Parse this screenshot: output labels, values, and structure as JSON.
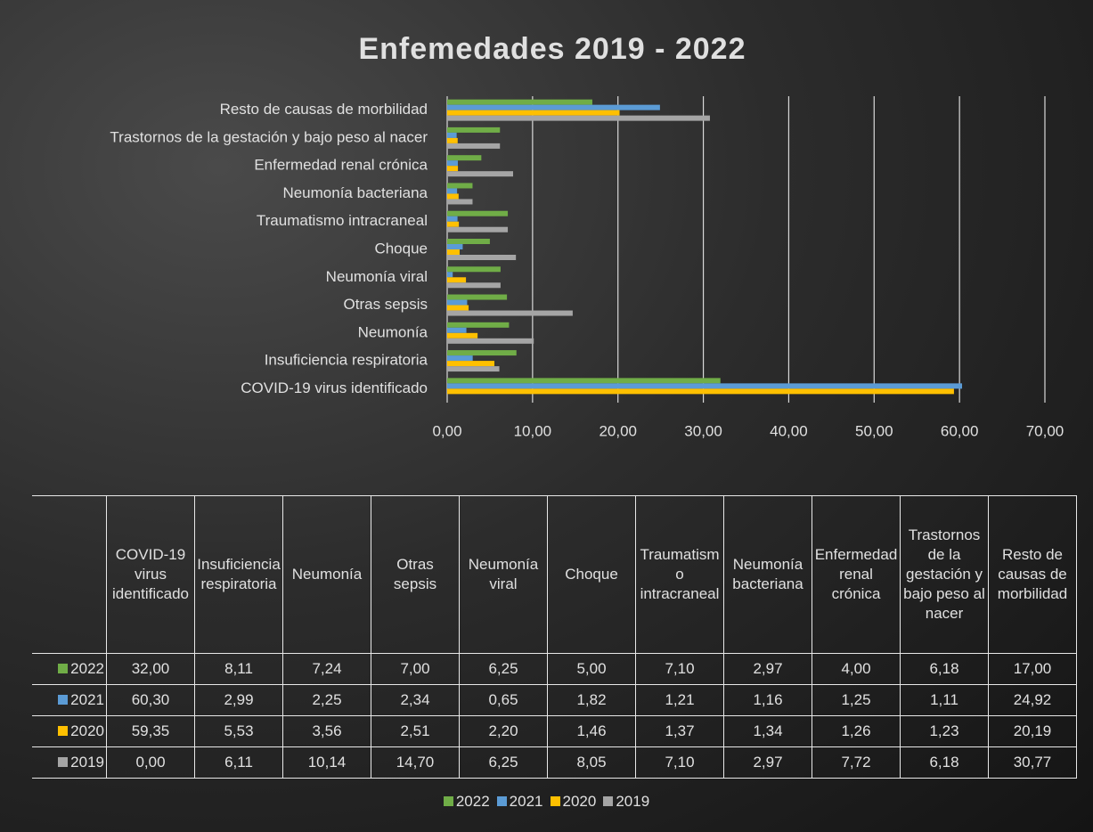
{
  "chart_data": {
    "type": "hbar",
    "title": "Enfemedades 2019 - 2022",
    "categories": [
      "COVID-19 virus identificado",
      "Insuficiencia respiratoria",
      "Neumonía",
      "Otras sepsis",
      "Neumonía viral",
      "Choque",
      "Traumatismo intracraneal",
      "Neumonía bacteriana",
      "Enfermedad renal crónica",
      "Trastornos de la gestación y bajo peso al nacer",
      "Resto de causas de morbilidad"
    ],
    "series": [
      {
        "name": "2022",
        "color": "#70ad47",
        "values": [
          32.0,
          8.11,
          7.24,
          7.0,
          6.25,
          5.0,
          7.1,
          2.97,
          4.0,
          6.18,
          17.0
        ],
        "value_labels": [
          "32,00",
          "8,11",
          "7,24",
          "7,00",
          "6,25",
          "5,00",
          "7,10",
          "2,97",
          "4,00",
          "6,18",
          "17,00"
        ]
      },
      {
        "name": "2021",
        "color": "#5b9bd5",
        "values": [
          60.3,
          2.99,
          2.25,
          2.34,
          0.65,
          1.82,
          1.21,
          1.16,
          1.25,
          1.11,
          24.92
        ],
        "value_labels": [
          "60,30",
          "2,99",
          "2,25",
          "2,34",
          "0,65",
          "1,82",
          "1,21",
          "1,16",
          "1,25",
          "1,11",
          "24,92"
        ]
      },
      {
        "name": "2020",
        "color": "#ffc000",
        "values": [
          59.35,
          5.53,
          3.56,
          2.51,
          2.2,
          1.46,
          1.37,
          1.34,
          1.26,
          1.23,
          20.19
        ],
        "value_labels": [
          "59,35",
          "5,53",
          "3,56",
          "2,51",
          "2,20",
          "1,46",
          "1,37",
          "1,34",
          "1,26",
          "1,23",
          "20,19"
        ]
      },
      {
        "name": "2019",
        "color": "#a5a5a5",
        "values": [
          0.0,
          6.11,
          10.14,
          14.7,
          6.25,
          8.05,
          7.1,
          2.97,
          7.72,
          6.18,
          30.77
        ],
        "value_labels": [
          "0,00",
          "6,11",
          "10,14",
          "14,70",
          "6,25",
          "8,05",
          "7,10",
          "2,97",
          "7,72",
          "6,18",
          "30,77"
        ]
      }
    ],
    "xlim": [
      0,
      70
    ],
    "xticks": [
      {
        "value": 0,
        "label": "0,00"
      },
      {
        "value": 10,
        "label": "10,00"
      },
      {
        "value": 20,
        "label": "20,00"
      },
      {
        "value": 30,
        "label": "30,00"
      },
      {
        "value": 40,
        "label": "40,00"
      },
      {
        "value": 50,
        "label": "50,00"
      },
      {
        "value": 60,
        "label": "60,00"
      },
      {
        "value": 70,
        "label": "70,00"
      }
    ],
    "grid": true
  }
}
